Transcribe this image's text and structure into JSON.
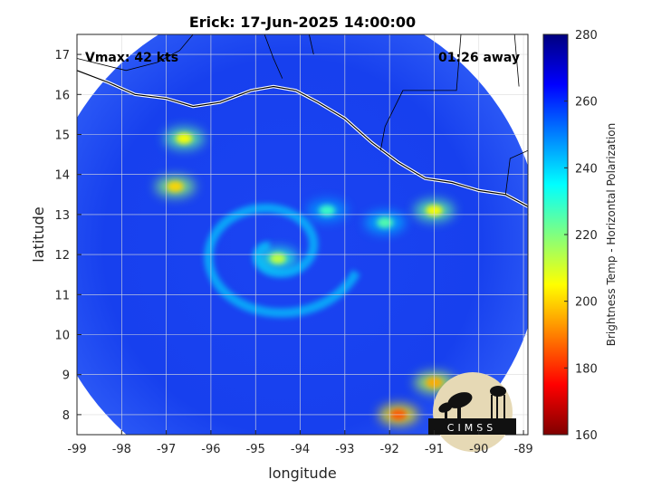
{
  "chart_data": {
    "type": "heatmap",
    "title": "Erick: 17-Jun-2025 14:00:00",
    "xlabel": "longitude",
    "ylabel": "latitude",
    "xlim": [
      -99,
      -88.9
    ],
    "ylim": [
      7.5,
      17.5
    ],
    "xticks": [
      -99,
      -98,
      -97,
      -96,
      -95,
      -94,
      -93,
      -92,
      -91,
      -90,
      -89
    ],
    "yticks": [
      8,
      9,
      10,
      11,
      12,
      13,
      14,
      15,
      16,
      17
    ],
    "grid": true,
    "annotations": {
      "vmax": "Vmax: 42 kts",
      "away": "01:26 away"
    },
    "colorbar": {
      "label": "Brightness Temp - Horizontal Polarization",
      "min": 160,
      "max": 280,
      "ticks": [
        160,
        180,
        200,
        220,
        240,
        260,
        280
      ],
      "colormap": [
        "#7f0000",
        "#ff0000",
        "#ff8000",
        "#ffff00",
        "#80ff80",
        "#00ffff",
        "#0080ff",
        "#0000ff",
        "#00007f"
      ]
    },
    "swath": {
      "center_lon": -94.2,
      "center_lat": 12.2,
      "radius_deg": 5.6,
      "background_value": 262
    },
    "storm_center": {
      "lon": -94.6,
      "lat": 12.1
    },
    "features": [
      {
        "name": "eye-wall band",
        "lon": -94.5,
        "lat": 11.9,
        "value": 212
      },
      {
        "name": "inner spiral band",
        "lon": -93.4,
        "lat": 13.1,
        "value": 228
      },
      {
        "name": "outer band north",
        "lon": -92.1,
        "lat": 12.8,
        "value": 225
      },
      {
        "name": "convection cell",
        "lon": -91.0,
        "lat": 13.1,
        "value": 205
      },
      {
        "name": "western band",
        "lon": -96.8,
        "lat": 13.7,
        "value": 200
      },
      {
        "name": "northwest cell",
        "lon": -96.6,
        "lat": 14.9,
        "value": 205
      },
      {
        "name": "southeast cluster",
        "lon": -91.0,
        "lat": 8.8,
        "value": 195
      },
      {
        "name": "south cell",
        "lon": -91.8,
        "lat": 8.0,
        "value": 185
      }
    ],
    "logo_text": "CIMSS"
  }
}
